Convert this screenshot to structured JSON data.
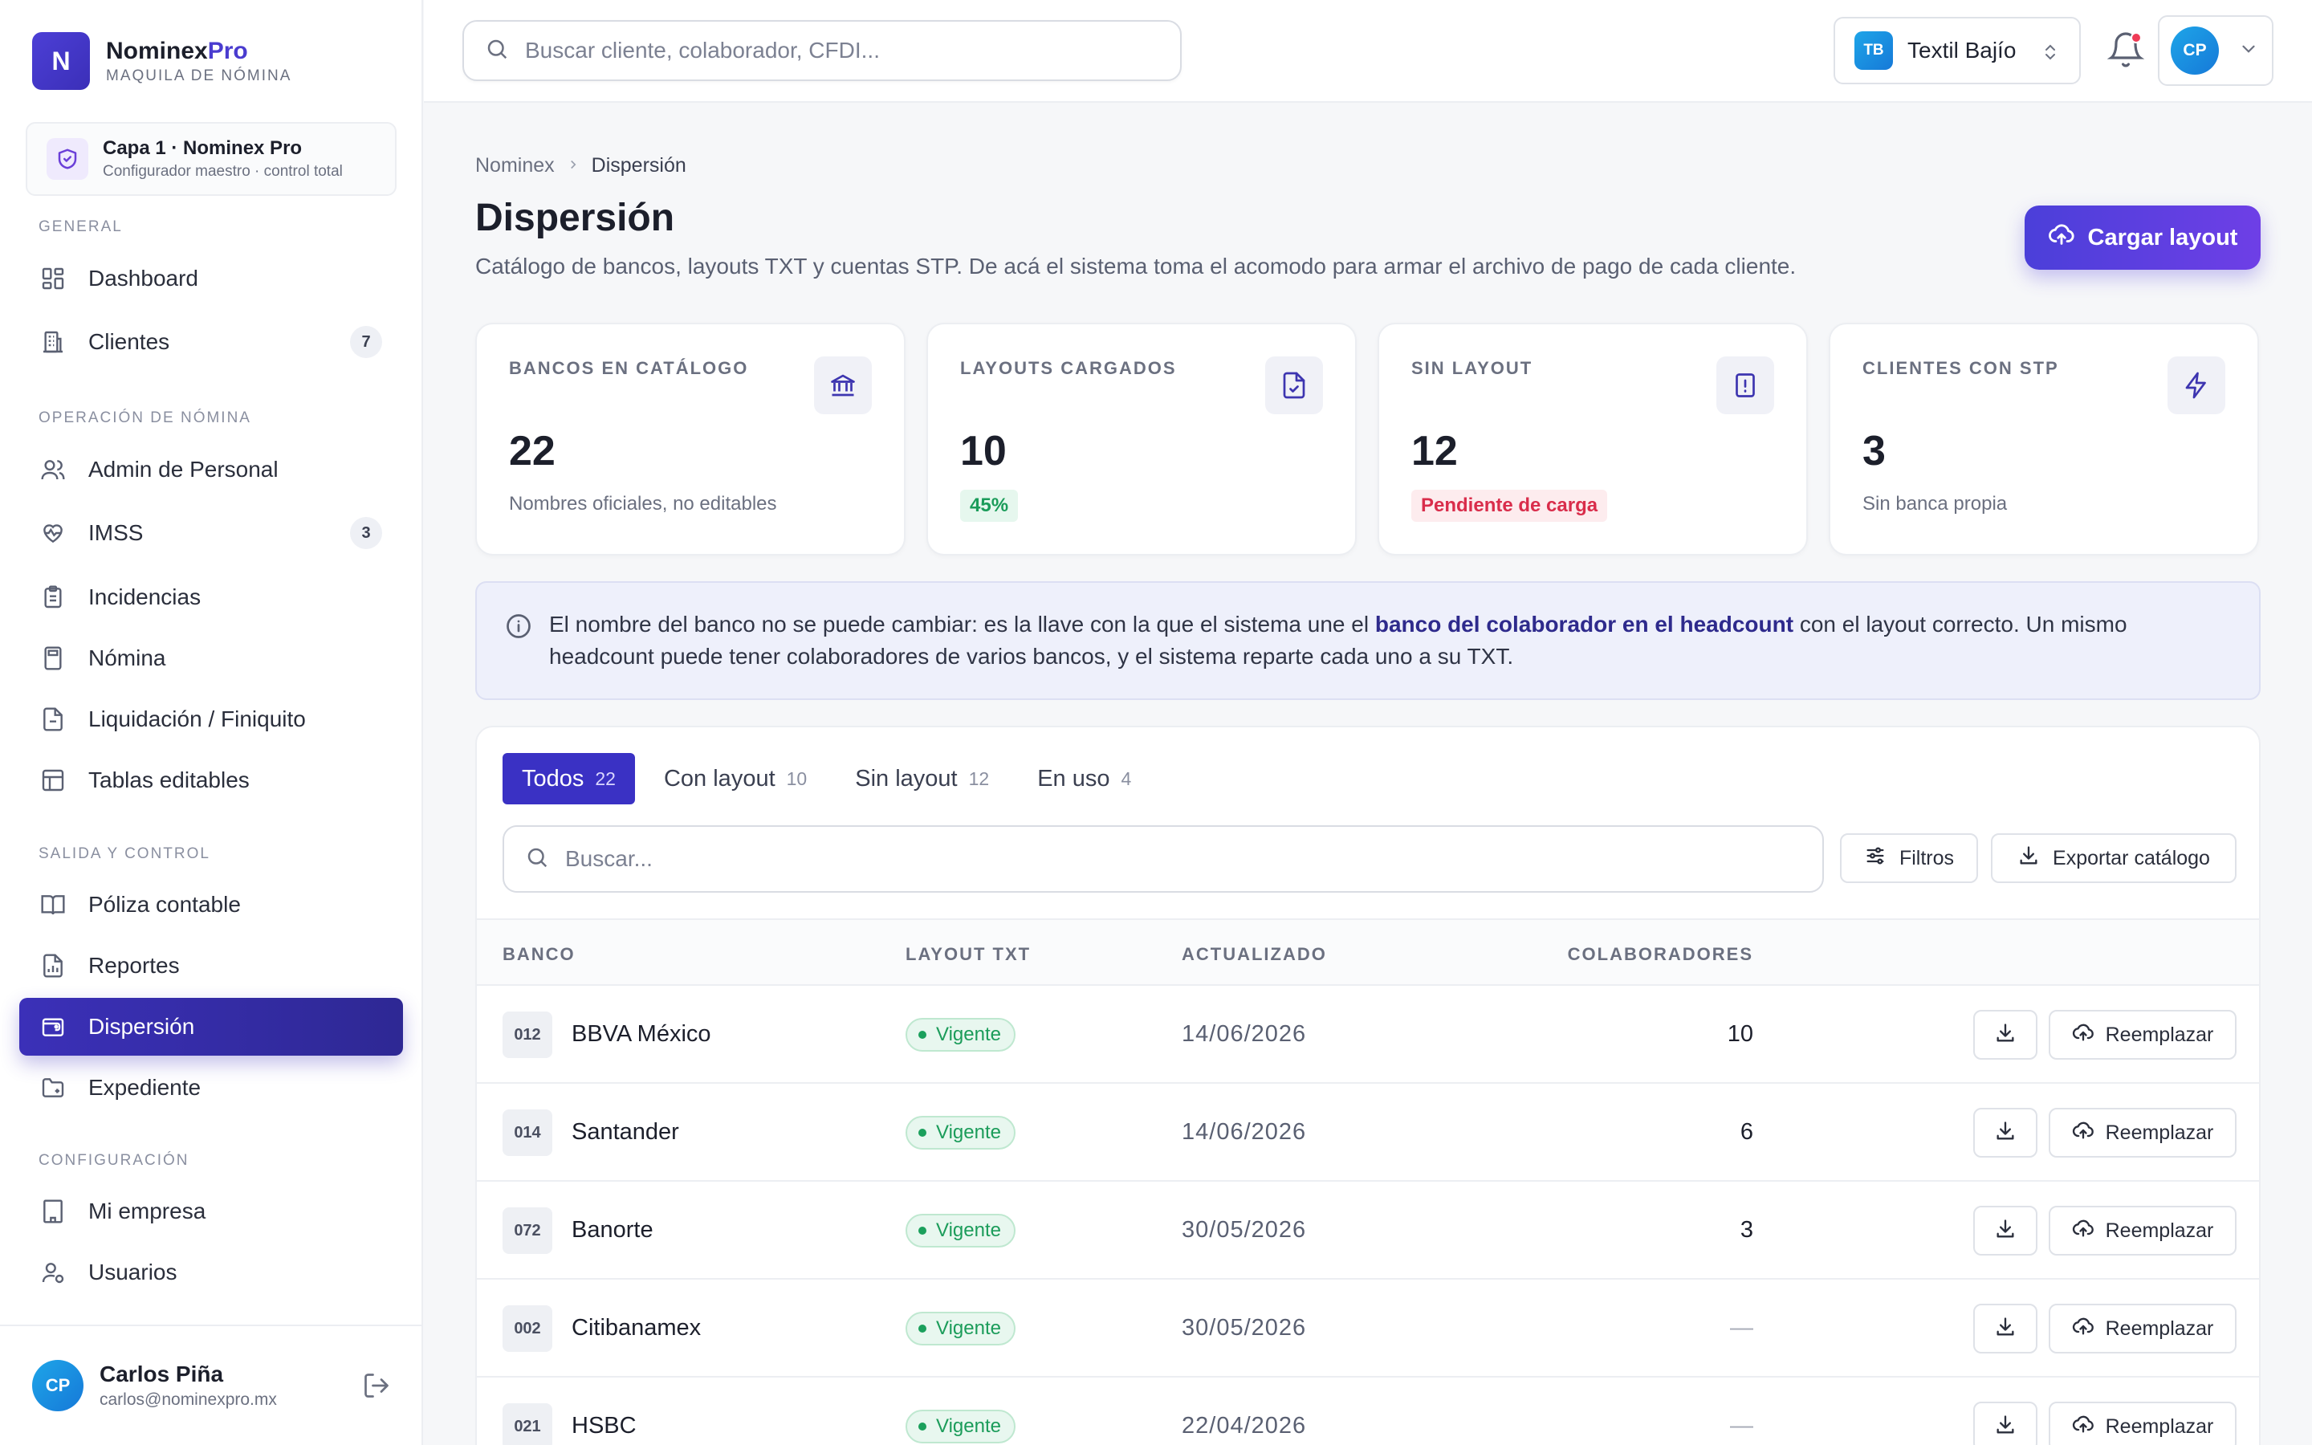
{
  "brand": {
    "name": "Nominex",
    "name_accent": "Pro",
    "subtitle": "MAQUILA DE NÓMINA",
    "logo_letter": "N"
  },
  "layer": {
    "title": "Capa 1 · Nominex Pro",
    "subtitle": "Configurador maestro · control total"
  },
  "sidebar": {
    "sections": [
      "GENERAL",
      "OPERACIÓN DE NÓMINA",
      "SALIDA Y CONTROL",
      "CONFIGURACIÓN"
    ],
    "items": [
      {
        "label": "Dashboard",
        "icon": "dashboard-icon"
      },
      {
        "label": "Clientes",
        "icon": "building-icon",
        "badge": "7"
      },
      {
        "label": "Admin de Personal",
        "icon": "users-icon"
      },
      {
        "label": "IMSS",
        "icon": "heart-pulse-icon",
        "badge": "3"
      },
      {
        "label": "Incidencias",
        "icon": "clipboard-icon"
      },
      {
        "label": "Nómina",
        "icon": "calculator-icon"
      },
      {
        "label": "Liquidación / Finiquito",
        "icon": "file-icon"
      },
      {
        "label": "Tablas editables",
        "icon": "table-icon"
      },
      {
        "label": "Póliza contable",
        "icon": "book-icon"
      },
      {
        "label": "Reportes",
        "icon": "report-icon"
      },
      {
        "label": "Dispersión",
        "icon": "wallet-icon",
        "active": true
      },
      {
        "label": "Expediente",
        "icon": "folder-icon"
      },
      {
        "label": "Mi empresa",
        "icon": "company-icon"
      },
      {
        "label": "Usuarios",
        "icon": "user-gear-icon"
      }
    ]
  },
  "user": {
    "initials": "CP",
    "name": "Carlos Piña",
    "email": "carlos@nominexpro.mx"
  },
  "topbar": {
    "search_placeholder": "Buscar cliente, colaborador, CFDI...",
    "company_initials": "TB",
    "company_name": "Textil Bajío",
    "profile_initials": "CP"
  },
  "page": {
    "breadcrumb": [
      "Nominex",
      "Dispersión"
    ],
    "title": "Dispersión",
    "description": "Catálogo de bancos, layouts TXT y cuentas STP. De acá el sistema toma el acomodo para armar el archivo de pago de cada cliente.",
    "upload_label": "Cargar layout"
  },
  "stats": [
    {
      "label": "BANCOS EN CATÁLOGO",
      "value": "22",
      "sub": "Nombres oficiales, no editables",
      "icon": "bank-icon"
    },
    {
      "label": "LAYOUTS CARGADOS",
      "value": "10",
      "pill": "45%",
      "pill_color": "#1b9c5a",
      "icon": "file-check-icon"
    },
    {
      "label": "SIN LAYOUT",
      "value": "12",
      "pill": "Pendiente de carga",
      "pill_color": "#d92d4b",
      "icon": "file-alert-icon"
    },
    {
      "label": "CLIENTES CON STP",
      "value": "3",
      "sub": "Sin banca propia",
      "icon": "bolt-icon"
    }
  ],
  "info": {
    "text_before": "El nombre del banco no se puede cambiar: es la llave con la que el sistema une el ",
    "text_bold": "banco del colaborador en el headcount",
    "text_after": " con el layout correcto. Un mismo headcount puede tener colaboradores de varios bancos, y el sistema reparte cada uno a su TXT."
  },
  "tabs": [
    {
      "label": "Todos",
      "count": "22",
      "active": true
    },
    {
      "label": "Con layout",
      "count": "10"
    },
    {
      "label": "Sin layout",
      "count": "12"
    },
    {
      "label": "En uso",
      "count": "4"
    }
  ],
  "table": {
    "search_placeholder": "Buscar...",
    "filters_label": "Filtros",
    "export_label": "Exportar catálogo",
    "columns": [
      "BANCO",
      "LAYOUT TXT",
      "ACTUALIZADO",
      "COLABORADORES"
    ],
    "replace_label": "Reemplazar",
    "rows": [
      {
        "code": "012",
        "bank": "BBVA México",
        "status": "Vigente",
        "updated": "14/06/2026",
        "collaborators": "10"
      },
      {
        "code": "014",
        "bank": "Santander",
        "status": "Vigente",
        "updated": "14/06/2026",
        "collaborators": "6"
      },
      {
        "code": "072",
        "bank": "Banorte",
        "status": "Vigente",
        "updated": "30/05/2026",
        "collaborators": "3"
      },
      {
        "code": "002",
        "bank": "Citibanamex",
        "status": "Vigente",
        "updated": "30/05/2026",
        "collaborators": "—"
      },
      {
        "code": "021",
        "bank": "HSBC",
        "status": "Vigente",
        "updated": "22/04/2026",
        "collaborators": "—"
      }
    ]
  }
}
